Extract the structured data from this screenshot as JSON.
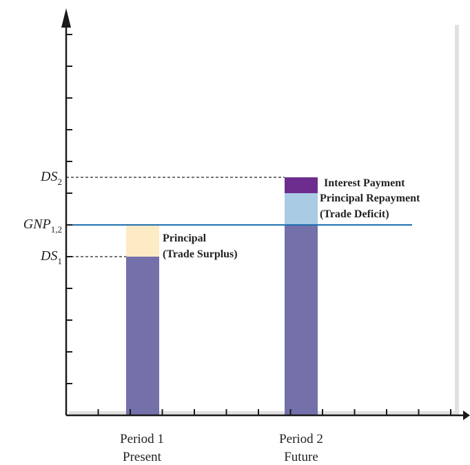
{
  "chart_data": {
    "type": "bar",
    "categories": [
      {
        "line1": "Period 1",
        "line2": "Present"
      },
      {
        "line1": "Period 2",
        "line2": "Future"
      }
    ],
    "ylim": [
      0,
      12
    ],
    "grid": false,
    "colors": {
      "base": "#7370aa",
      "principal": "#fdebc6",
      "repayment": "#a9cbe4",
      "interest": "#6d2d8e",
      "gnp_line": "#1f6fb0",
      "axis": "#1a1a1a",
      "shadow": "#e1e1e1"
    },
    "levels": {
      "DS1": 5.0,
      "GNP": 6.0,
      "DS2": 7.5,
      "repayment_top": 7.0
    },
    "y_labels": [
      {
        "key": "DS2",
        "main": "DS",
        "sub": "2"
      },
      {
        "key": "GNP",
        "main": "GNP",
        "sub": "1,2"
      },
      {
        "key": "DS1",
        "main": "DS",
        "sub": "1"
      }
    ],
    "annotations": {
      "principal_line1": "Principal",
      "principal_line2": "(Trade Surplus)",
      "interest": "Interest Payment",
      "repayment_line1": "Principal Repayment",
      "repayment_line2": "(Trade Deficit)"
    }
  }
}
